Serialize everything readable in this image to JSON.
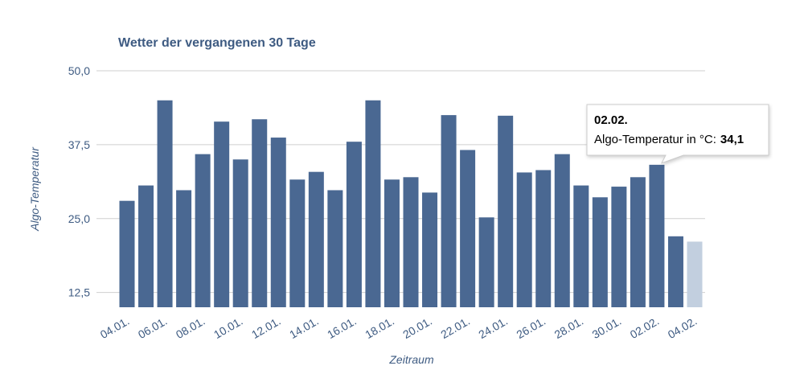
{
  "chart_data": {
    "type": "bar",
    "title": "Wetter der vergangenen 30 Tage",
    "ylabel": "Algo-Temperatur",
    "xlabel": "Zeitraum",
    "categories": [
      "04.01.",
      null,
      "06.01.",
      null,
      "08.01.",
      null,
      "10.01.",
      null,
      "12.01.",
      null,
      "14.01.",
      null,
      "16.01.",
      null,
      "18.01.",
      null,
      "20.01.",
      null,
      "22.01.",
      null,
      "24.01.",
      null,
      "26.01.",
      null,
      "28.01.",
      null,
      "30.01.",
      null,
      "02.02.",
      null,
      "04.02."
    ],
    "series": [
      {
        "name": "Algo-Temperatur",
        "color": "#4a6892",
        "values": [
          28.0,
          30.6,
          45.0,
          29.8,
          35.9,
          41.4,
          35.0,
          41.8,
          38.7,
          31.6,
          32.9,
          29.8,
          38.0,
          45.0,
          31.6,
          32.0,
          29.4,
          42.5,
          36.6,
          25.2,
          42.4,
          32.8,
          33.2,
          35.9,
          30.6,
          28.6,
          30.4,
          32.0,
          34.1,
          22.0,
          21.1
        ],
        "colors": [
          "#4a6892",
          "#4a6892",
          "#4a6892",
          "#4a6892",
          "#4a6892",
          "#4a6892",
          "#4a6892",
          "#4a6892",
          "#4a6892",
          "#4a6892",
          "#4a6892",
          "#4a6892",
          "#4a6892",
          "#4a6892",
          "#4a6892",
          "#4a6892",
          "#4a6892",
          "#4a6892",
          "#4a6892",
          "#4a6892",
          "#4a6892",
          "#4a6892",
          "#4a6892",
          "#4a6892",
          "#4a6892",
          "#4a6892",
          "#4a6892",
          "#4a6892",
          "#4a6892",
          "#4a6892",
          "#c2cfdf"
        ]
      }
    ],
    "ylim": [
      10,
      50
    ],
    "yticks": [
      {
        "value": 12.5,
        "label": "12,5"
      },
      {
        "value": 25,
        "label": "25,0"
      },
      {
        "value": 37.5,
        "label": "37,5"
      },
      {
        "value": 50,
        "label": "50,0"
      }
    ],
    "grid": true,
    "tooltip": {
      "index": 28,
      "title": "02.02.",
      "label": "Algo-Temperatur in °C:",
      "value_label": "34,1"
    }
  }
}
